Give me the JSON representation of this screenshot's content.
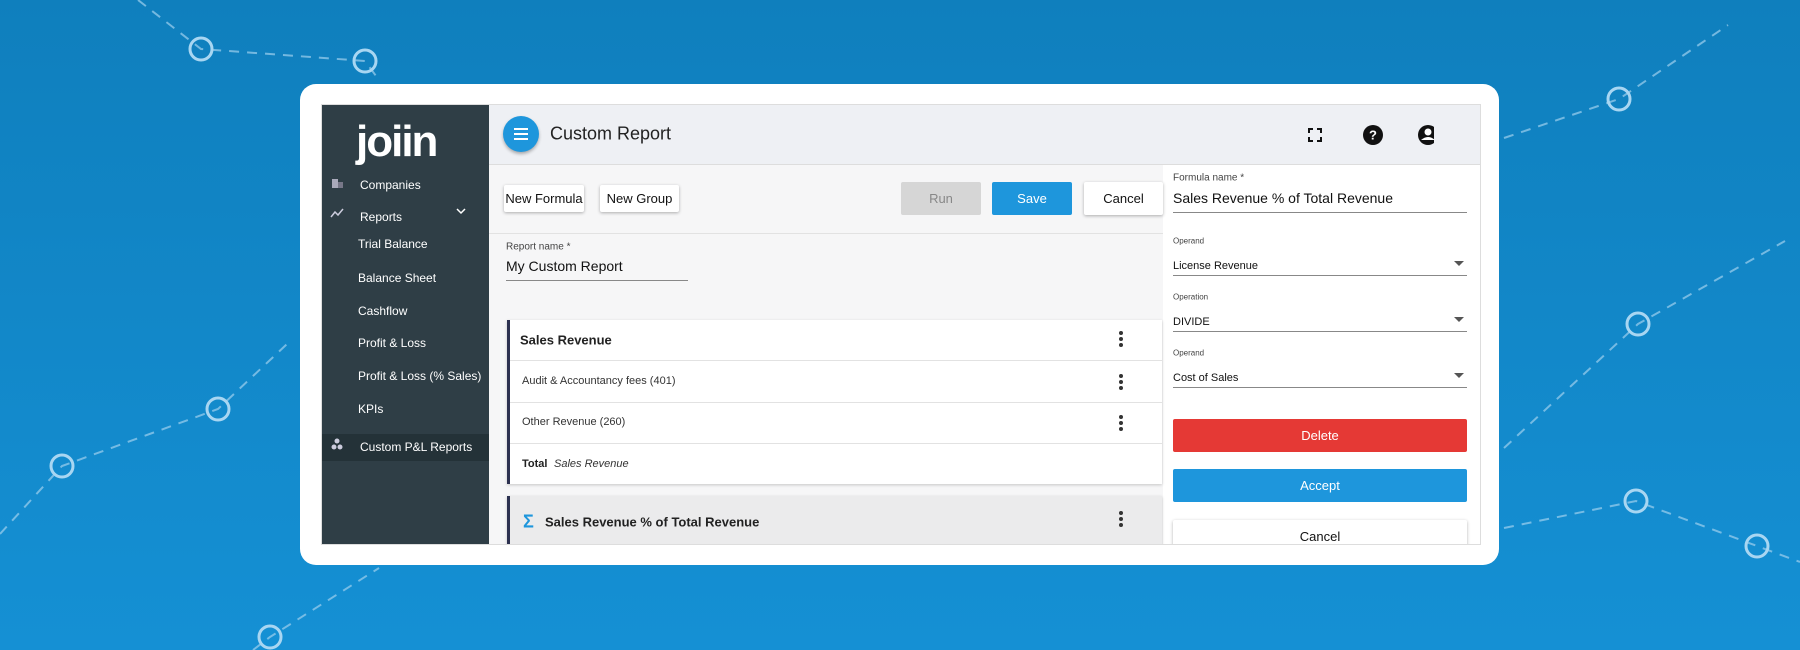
{
  "sidebar": {
    "logo": "joiin",
    "items": [
      "Companies",
      "Reports",
      "Trial Balance",
      "Balance Sheet",
      "Cashflow",
      "Profit & Loss",
      "Profit & Loss (% Sales)",
      "KPIs",
      "Custom P&L Reports"
    ]
  },
  "header": {
    "title": "Custom Report"
  },
  "toolbar": {
    "buttons": [
      "New Formula",
      "New Group",
      "Run",
      "Save",
      "Cancel"
    ]
  },
  "report_name": {
    "label": "Report name *",
    "value": "My Custom Report"
  },
  "groups": [
    {
      "title": "Sales Revenue",
      "rows": [
        "Audit & Accountancy fees (401)",
        "Other Revenue (260)"
      ],
      "total_label": "Total",
      "total_name": "Sales Revenue"
    },
    {
      "symbol": "Σ",
      "title": "Sales Revenue % of Total Revenue"
    }
  ],
  "formula_panel": {
    "name_label": "Formula name *",
    "name_value": "Sales Revenue % of Total Revenue",
    "fields": [
      {
        "label": "Operand",
        "value": "License Revenue"
      },
      {
        "label": "Operation",
        "value": "DIVIDE"
      },
      {
        "label": "Operand",
        "value": "Cost of Sales"
      }
    ],
    "buttons": [
      "Delete",
      "Accept",
      "Cancel"
    ]
  }
}
